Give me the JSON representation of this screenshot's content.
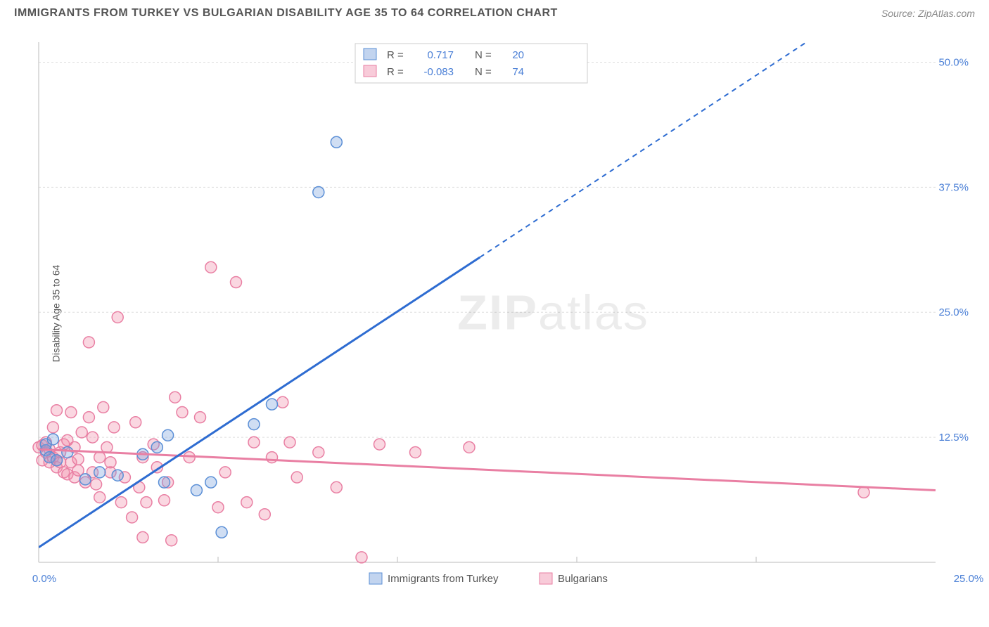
{
  "title": "IMMIGRANTS FROM TURKEY VS BULGARIAN DISABILITY AGE 35 TO 64 CORRELATION CHART",
  "source": "Source: ZipAtlas.com",
  "yaxis_label": "Disability Age 35 to 64",
  "watermark": "ZIPatlas",
  "chart": {
    "type": "scatter",
    "xlim": [
      0,
      25
    ],
    "ylim": [
      0,
      52
    ],
    "xtick_labels": [
      "0.0%",
      "25.0%"
    ],
    "xtick_pos": [
      0,
      25
    ],
    "ytick_labels": [
      "12.5%",
      "25.0%",
      "37.5%",
      "50.0%"
    ],
    "ytick_pos": [
      12.5,
      25.0,
      37.5,
      50.0
    ],
    "grid_color": "#dddddd",
    "axis_color": "#bbbbbb",
    "background_color": "#ffffff",
    "marker_radius": 8
  },
  "series": [
    {
      "name": "Immigrants from Turkey",
      "key": "turkey",
      "color_fill": "rgba(120,160,220,0.35)",
      "color_stroke": "#5b8fd6",
      "R": "0.717",
      "N": "20",
      "reg_line": {
        "x1": 0,
        "y1": 1.5,
        "x2": 12.3,
        "y2": 30.5,
        "dash_x2": 25,
        "dash_y2": 60.5
      },
      "points": [
        [
          0.2,
          11.2
        ],
        [
          0.2,
          11.8
        ],
        [
          0.3,
          10.5
        ],
        [
          0.4,
          12.3
        ],
        [
          0.5,
          10.2
        ],
        [
          0.8,
          11.0
        ],
        [
          1.3,
          8.3
        ],
        [
          1.7,
          9.0
        ],
        [
          2.2,
          8.7
        ],
        [
          2.9,
          10.8
        ],
        [
          3.3,
          11.5
        ],
        [
          3.5,
          8.0
        ],
        [
          3.6,
          12.7
        ],
        [
          4.8,
          8.0
        ],
        [
          5.1,
          3.0
        ],
        [
          6.0,
          13.8
        ],
        [
          6.5,
          15.8
        ],
        [
          7.8,
          37.0
        ],
        [
          8.3,
          42.0
        ],
        [
          4.4,
          7.2
        ]
      ]
    },
    {
      "name": "Bulgarians",
      "key": "bulgarians",
      "color_fill": "rgba(240,140,170,0.35)",
      "color_stroke": "#e97fa3",
      "R": "-0.083",
      "N": "74",
      "reg_line": {
        "x1": 0,
        "y1": 11.3,
        "x2": 25,
        "y2": 7.2
      },
      "points": [
        [
          0.0,
          11.5
        ],
        [
          0.1,
          11.7
        ],
        [
          0.1,
          10.2
        ],
        [
          0.2,
          12.0
        ],
        [
          0.2,
          11.0
        ],
        [
          0.3,
          11.3
        ],
        [
          0.3,
          10.0
        ],
        [
          0.4,
          10.5
        ],
        [
          0.4,
          13.5
        ],
        [
          0.5,
          9.5
        ],
        [
          0.5,
          10.2
        ],
        [
          0.5,
          15.2
        ],
        [
          0.6,
          11.0
        ],
        [
          0.6,
          10.0
        ],
        [
          0.7,
          9.0
        ],
        [
          0.7,
          11.8
        ],
        [
          0.8,
          12.2
        ],
        [
          0.8,
          8.8
        ],
        [
          0.9,
          10.0
        ],
        [
          0.9,
          15.0
        ],
        [
          1.0,
          11.5
        ],
        [
          1.0,
          8.5
        ],
        [
          1.1,
          9.2
        ],
        [
          1.1,
          10.3
        ],
        [
          1.2,
          13.0
        ],
        [
          1.3,
          8.0
        ],
        [
          1.4,
          22.0
        ],
        [
          1.4,
          14.5
        ],
        [
          1.5,
          12.5
        ],
        [
          1.5,
          9.0
        ],
        [
          1.6,
          7.8
        ],
        [
          1.7,
          10.5
        ],
        [
          1.7,
          6.5
        ],
        [
          1.8,
          15.5
        ],
        [
          1.9,
          11.5
        ],
        [
          2.0,
          9.0
        ],
        [
          2.0,
          10.0
        ],
        [
          2.1,
          13.5
        ],
        [
          2.2,
          24.5
        ],
        [
          2.3,
          6.0
        ],
        [
          2.4,
          8.5
        ],
        [
          2.6,
          4.5
        ],
        [
          2.7,
          14.0
        ],
        [
          2.8,
          7.5
        ],
        [
          2.9,
          10.5
        ],
        [
          2.9,
          2.5
        ],
        [
          3.0,
          6.0
        ],
        [
          3.2,
          11.8
        ],
        [
          3.3,
          9.5
        ],
        [
          3.5,
          6.2
        ],
        [
          3.6,
          8.0
        ],
        [
          3.7,
          2.2
        ],
        [
          4.0,
          15.0
        ],
        [
          4.2,
          10.5
        ],
        [
          4.5,
          14.5
        ],
        [
          4.8,
          29.5
        ],
        [
          5.0,
          5.5
        ],
        [
          5.2,
          9.0
        ],
        [
          5.5,
          28.0
        ],
        [
          5.8,
          6.0
        ],
        [
          6.0,
          12.0
        ],
        [
          6.3,
          4.8
        ],
        [
          6.5,
          10.5
        ],
        [
          6.8,
          16.0
        ],
        [
          7.0,
          12.0
        ],
        [
          7.2,
          8.5
        ],
        [
          7.8,
          11.0
        ],
        [
          8.3,
          7.5
        ],
        [
          9.5,
          11.8
        ],
        [
          9.0,
          0.5
        ],
        [
          10.5,
          11.0
        ],
        [
          12.0,
          11.5
        ],
        [
          23.0,
          7.0
        ],
        [
          3.8,
          16.5
        ]
      ]
    }
  ],
  "stats_legend": {
    "R_label": "R =",
    "N_label": "N ="
  },
  "bottom_legend": {
    "items": [
      "Immigrants from Turkey",
      "Bulgarians"
    ]
  }
}
